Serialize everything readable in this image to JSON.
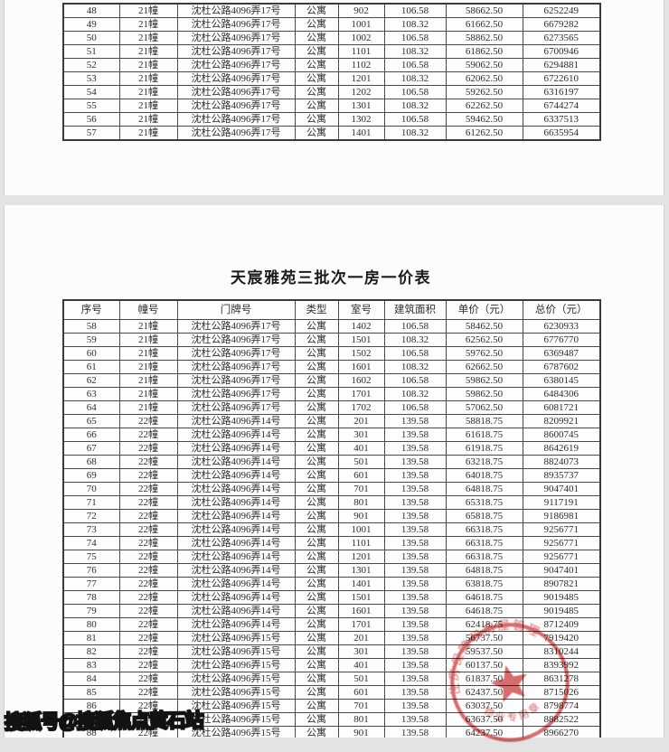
{
  "page1": {
    "table_rows": [
      [
        "48",
        "21幢",
        "沈杜公路4096弄17号",
        "公寓",
        "902",
        "106.58",
        "58662.50",
        "6252249"
      ],
      [
        "49",
        "21幢",
        "沈杜公路4096弄17号",
        "公寓",
        "1001",
        "108.32",
        "61662.50",
        "6679282"
      ],
      [
        "50",
        "21幢",
        "沈杜公路4096弄17号",
        "公寓",
        "1002",
        "106.58",
        "58862.50",
        "6273565"
      ],
      [
        "51",
        "21幢",
        "沈杜公路4096弄17号",
        "公寓",
        "1101",
        "108.32",
        "61862.50",
        "6700946"
      ],
      [
        "52",
        "21幢",
        "沈杜公路4096弄17号",
        "公寓",
        "1102",
        "106.58",
        "59062.50",
        "6294881"
      ],
      [
        "53",
        "21幢",
        "沈杜公路4096弄17号",
        "公寓",
        "1201",
        "108.32",
        "62062.50",
        "6722610"
      ],
      [
        "54",
        "21幢",
        "沈杜公路4096弄17号",
        "公寓",
        "1202",
        "106.58",
        "59262.50",
        "6316197"
      ],
      [
        "55",
        "21幢",
        "沈杜公路4096弄17号",
        "公寓",
        "1301",
        "108.32",
        "62262.50",
        "6744274"
      ],
      [
        "56",
        "21幢",
        "沈杜公路4096弄17号",
        "公寓",
        "1302",
        "106.58",
        "59462.50",
        "6337513"
      ],
      [
        "57",
        "21幢",
        "沈杜公路4096弄17号",
        "公寓",
        "1401",
        "108.32",
        "61262.50",
        "6635954"
      ]
    ]
  },
  "page2": {
    "title": "天宸雅苑三批次一房一价表",
    "table_headers": [
      "序号",
      "幢号",
      "门牌号",
      "类型",
      "室号",
      "建筑面积",
      "单价（元）",
      "总价（元）"
    ],
    "table_rows": [
      [
        "58",
        "21幢",
        "沈杜公路4096弄17号",
        "公寓",
        "1402",
        "106.58",
        "58462.50",
        "6230933"
      ],
      [
        "59",
        "21幢",
        "沈杜公路4096弄17号",
        "公寓",
        "1501",
        "108.32",
        "62562.50",
        "6776770"
      ],
      [
        "60",
        "21幢",
        "沈杜公路4096弄17号",
        "公寓",
        "1502",
        "106.58",
        "59762.50",
        "6369487"
      ],
      [
        "61",
        "21幢",
        "沈杜公路4096弄17号",
        "公寓",
        "1601",
        "108.32",
        "62662.50",
        "6787602"
      ],
      [
        "62",
        "21幢",
        "沈杜公路4096弄17号",
        "公寓",
        "1602",
        "106.58",
        "59862.50",
        "6380145"
      ],
      [
        "63",
        "21幢",
        "沈杜公路4096弄17号",
        "公寓",
        "1701",
        "108.32",
        "59862.50",
        "6484306"
      ],
      [
        "64",
        "21幢",
        "沈杜公路4096弄17号",
        "公寓",
        "1702",
        "106.58",
        "57062.50",
        "6081721"
      ],
      [
        "65",
        "22幢",
        "沈杜公路4096弄14号",
        "公寓",
        "201",
        "139.58",
        "58818.75",
        "8209921"
      ],
      [
        "66",
        "22幢",
        "沈杜公路4096弄14号",
        "公寓",
        "301",
        "139.58",
        "61618.75",
        "8600745"
      ],
      [
        "67",
        "22幢",
        "沈杜公路4096弄14号",
        "公寓",
        "401",
        "139.58",
        "61918.75",
        "8642619"
      ],
      [
        "68",
        "22幢",
        "沈杜公路4096弄14号",
        "公寓",
        "501",
        "139.58",
        "63218.75",
        "8824073"
      ],
      [
        "69",
        "22幢",
        "沈杜公路4096弄14号",
        "公寓",
        "601",
        "139.58",
        "64018.75",
        "8935737"
      ],
      [
        "70",
        "22幢",
        "沈杜公路4096弄14号",
        "公寓",
        "701",
        "139.58",
        "64818.75",
        "9047401"
      ],
      [
        "71",
        "22幢",
        "沈杜公路4096弄14号",
        "公寓",
        "801",
        "139.58",
        "65318.75",
        "9117191"
      ],
      [
        "72",
        "22幢",
        "沈杜公路4096弄14号",
        "公寓",
        "901",
        "139.58",
        "65818.75",
        "9186981"
      ],
      [
        "73",
        "22幢",
        "沈杜公路4096弄14号",
        "公寓",
        "1001",
        "139.58",
        "66318.75",
        "9256771"
      ],
      [
        "74",
        "22幢",
        "沈杜公路4096弄14号",
        "公寓",
        "1101",
        "139.58",
        "66318.75",
        "9256771"
      ],
      [
        "75",
        "22幢",
        "沈杜公路4096弄14号",
        "公寓",
        "1201",
        "139.58",
        "66318.75",
        "9256771"
      ],
      [
        "76",
        "22幢",
        "沈杜公路4096弄14号",
        "公寓",
        "1301",
        "139.58",
        "64818.75",
        "9047401"
      ],
      [
        "77",
        "22幢",
        "沈杜公路4096弄14号",
        "公寓",
        "1401",
        "139.58",
        "63818.75",
        "8907821"
      ],
      [
        "78",
        "22幢",
        "沈杜公路4096弄14号",
        "公寓",
        "1501",
        "139.58",
        "64618.75",
        "9019485"
      ],
      [
        "79",
        "22幢",
        "沈杜公路4096弄14号",
        "公寓",
        "1601",
        "139.58",
        "64618.75",
        "9019485"
      ],
      [
        "80",
        "22幢",
        "沈杜公路4096弄14号",
        "公寓",
        "1701",
        "139.58",
        "62418.75",
        "8712409"
      ],
      [
        "81",
        "22幢",
        "沈杜公路4096弄15号",
        "公寓",
        "201",
        "139.58",
        "56737.50",
        "7919420"
      ],
      [
        "82",
        "22幢",
        "沈杜公路4096弄15号",
        "公寓",
        "301",
        "139.58",
        "59537.50",
        "8310244"
      ],
      [
        "83",
        "22幢",
        "沈杜公路4096弄15号",
        "公寓",
        "401",
        "139.58",
        "60137.50",
        "8393992"
      ],
      [
        "84",
        "22幢",
        "沈杜公路4096弄15号",
        "公寓",
        "501",
        "139.58",
        "61837.50",
        "8631278"
      ],
      [
        "85",
        "22幢",
        "沈杜公路4096弄15号",
        "公寓",
        "601",
        "139.58",
        "62437.50",
        "8715026"
      ],
      [
        "86",
        "22幢",
        "沈杜公路4096弄15号",
        "公寓",
        "701",
        "139.58",
        "63037.50",
        "8798774"
      ],
      [
        "87",
        "22幢",
        "沈杜公路4096弄15号",
        "公寓",
        "801",
        "139.58",
        "63637.50",
        "8882522"
      ],
      [
        "88",
        "22幢",
        "沈杜公路4096弄15号",
        "公寓",
        "901",
        "139.58",
        "64237.50",
        "8966270"
      ],
      [
        "89",
        "22幢",
        "沈杜公路4096弄15号",
        "公寓",
        "",
        "",
        "",
        ""
      ]
    ]
  },
  "stamp": {
    "top_arc_text": "住房保障和房屋管理",
    "bottom_arc_text": "物业专用章",
    "color": "#d24c4c"
  },
  "watermark": {
    "text": "搜狐号@搜狐焦点黄石站"
  }
}
